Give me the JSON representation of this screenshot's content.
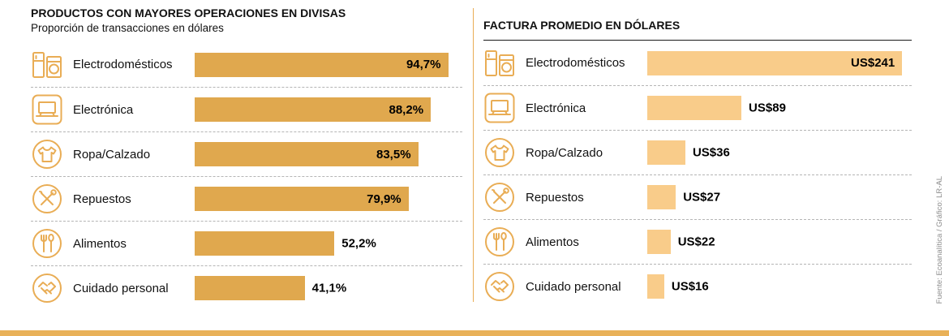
{
  "page": {
    "source_credit": "Fuente: Ecoanalítica / Gráfico: LR-AL"
  },
  "colors": {
    "left_bar": "#e0a84e",
    "right_bar": "#f9cc8a",
    "accent_gold": "#e9ad55",
    "separator": "#b5b5b5",
    "bottom_strip": "#e9b158",
    "value_text": "#000000"
  },
  "chart_data": [
    {
      "type": "bar",
      "orientation": "horizontal",
      "title": "PRODUCTOS CON MAYORES OPERACIONES EN DIVISAS",
      "subtitle": "Proporción de transacciones en dólares",
      "unit": "%",
      "xlim": [
        0,
        100
      ],
      "grid": false,
      "legend": "none",
      "bar_color": "#e0a84e",
      "categories": [
        "Electrodomésticos",
        "Electrónica",
        "Ropa/Calzado",
        "Repuestos",
        "Alimentos",
        "Cuidado personal"
      ],
      "values": [
        94.7,
        88.2,
        83.5,
        79.9,
        52.2,
        41.1
      ],
      "items": [
        {
          "label": "Electrodomésticos",
          "icon": "appliances-icon",
          "value": 94.7,
          "display": "94,7%",
          "label_inside": true
        },
        {
          "label": "Electrónica",
          "icon": "electronics-icon",
          "value": 88.2,
          "display": "88,2%",
          "label_inside": true
        },
        {
          "label": "Ropa/Calzado",
          "icon": "clothing-icon",
          "value": 83.5,
          "display": "83,5%",
          "label_inside": true
        },
        {
          "label": "Repuestos",
          "icon": "tools-icon",
          "value": 79.9,
          "display": "79,9%",
          "label_inside": true
        },
        {
          "label": "Alimentos",
          "icon": "food-icon",
          "value": 52.2,
          "display": "52,2%",
          "label_inside": false
        },
        {
          "label": "Cuidado personal",
          "icon": "personal-care-icon",
          "value": 41.1,
          "display": "41,1%",
          "label_inside": false
        }
      ]
    },
    {
      "type": "bar",
      "orientation": "horizontal",
      "title": "FACTURA PROMEDIO EN DÓLARES",
      "unit": "US$",
      "xlim": [
        0,
        250
      ],
      "grid": false,
      "legend": "none",
      "bar_color": "#f9cc8a",
      "categories": [
        "Electrodomésticos",
        "Electrónica",
        "Ropa/Calzado",
        "Repuestos",
        "Alimentos",
        "Cuidado personal"
      ],
      "values": [
        241,
        89,
        36,
        27,
        22,
        16
      ],
      "items": [
        {
          "label": "Electrodomésticos",
          "icon": "appliances-icon",
          "value": 241,
          "display": "US$241",
          "label_inside": true
        },
        {
          "label": "Electrónica",
          "icon": "electronics-icon",
          "value": 89,
          "display": "US$89",
          "label_inside": false
        },
        {
          "label": "Ropa/Calzado",
          "icon": "clothing-icon",
          "value": 36,
          "display": "US$36",
          "label_inside": false
        },
        {
          "label": "Repuestos",
          "icon": "tools-icon",
          "value": 27,
          "display": "US$27",
          "label_inside": false
        },
        {
          "label": "Alimentos",
          "icon": "food-icon",
          "value": 22,
          "display": "US$22",
          "label_inside": false
        },
        {
          "label": "Cuidado personal",
          "icon": "personal-care-icon",
          "value": 16,
          "display": "US$16",
          "label_inside": false
        }
      ]
    }
  ]
}
